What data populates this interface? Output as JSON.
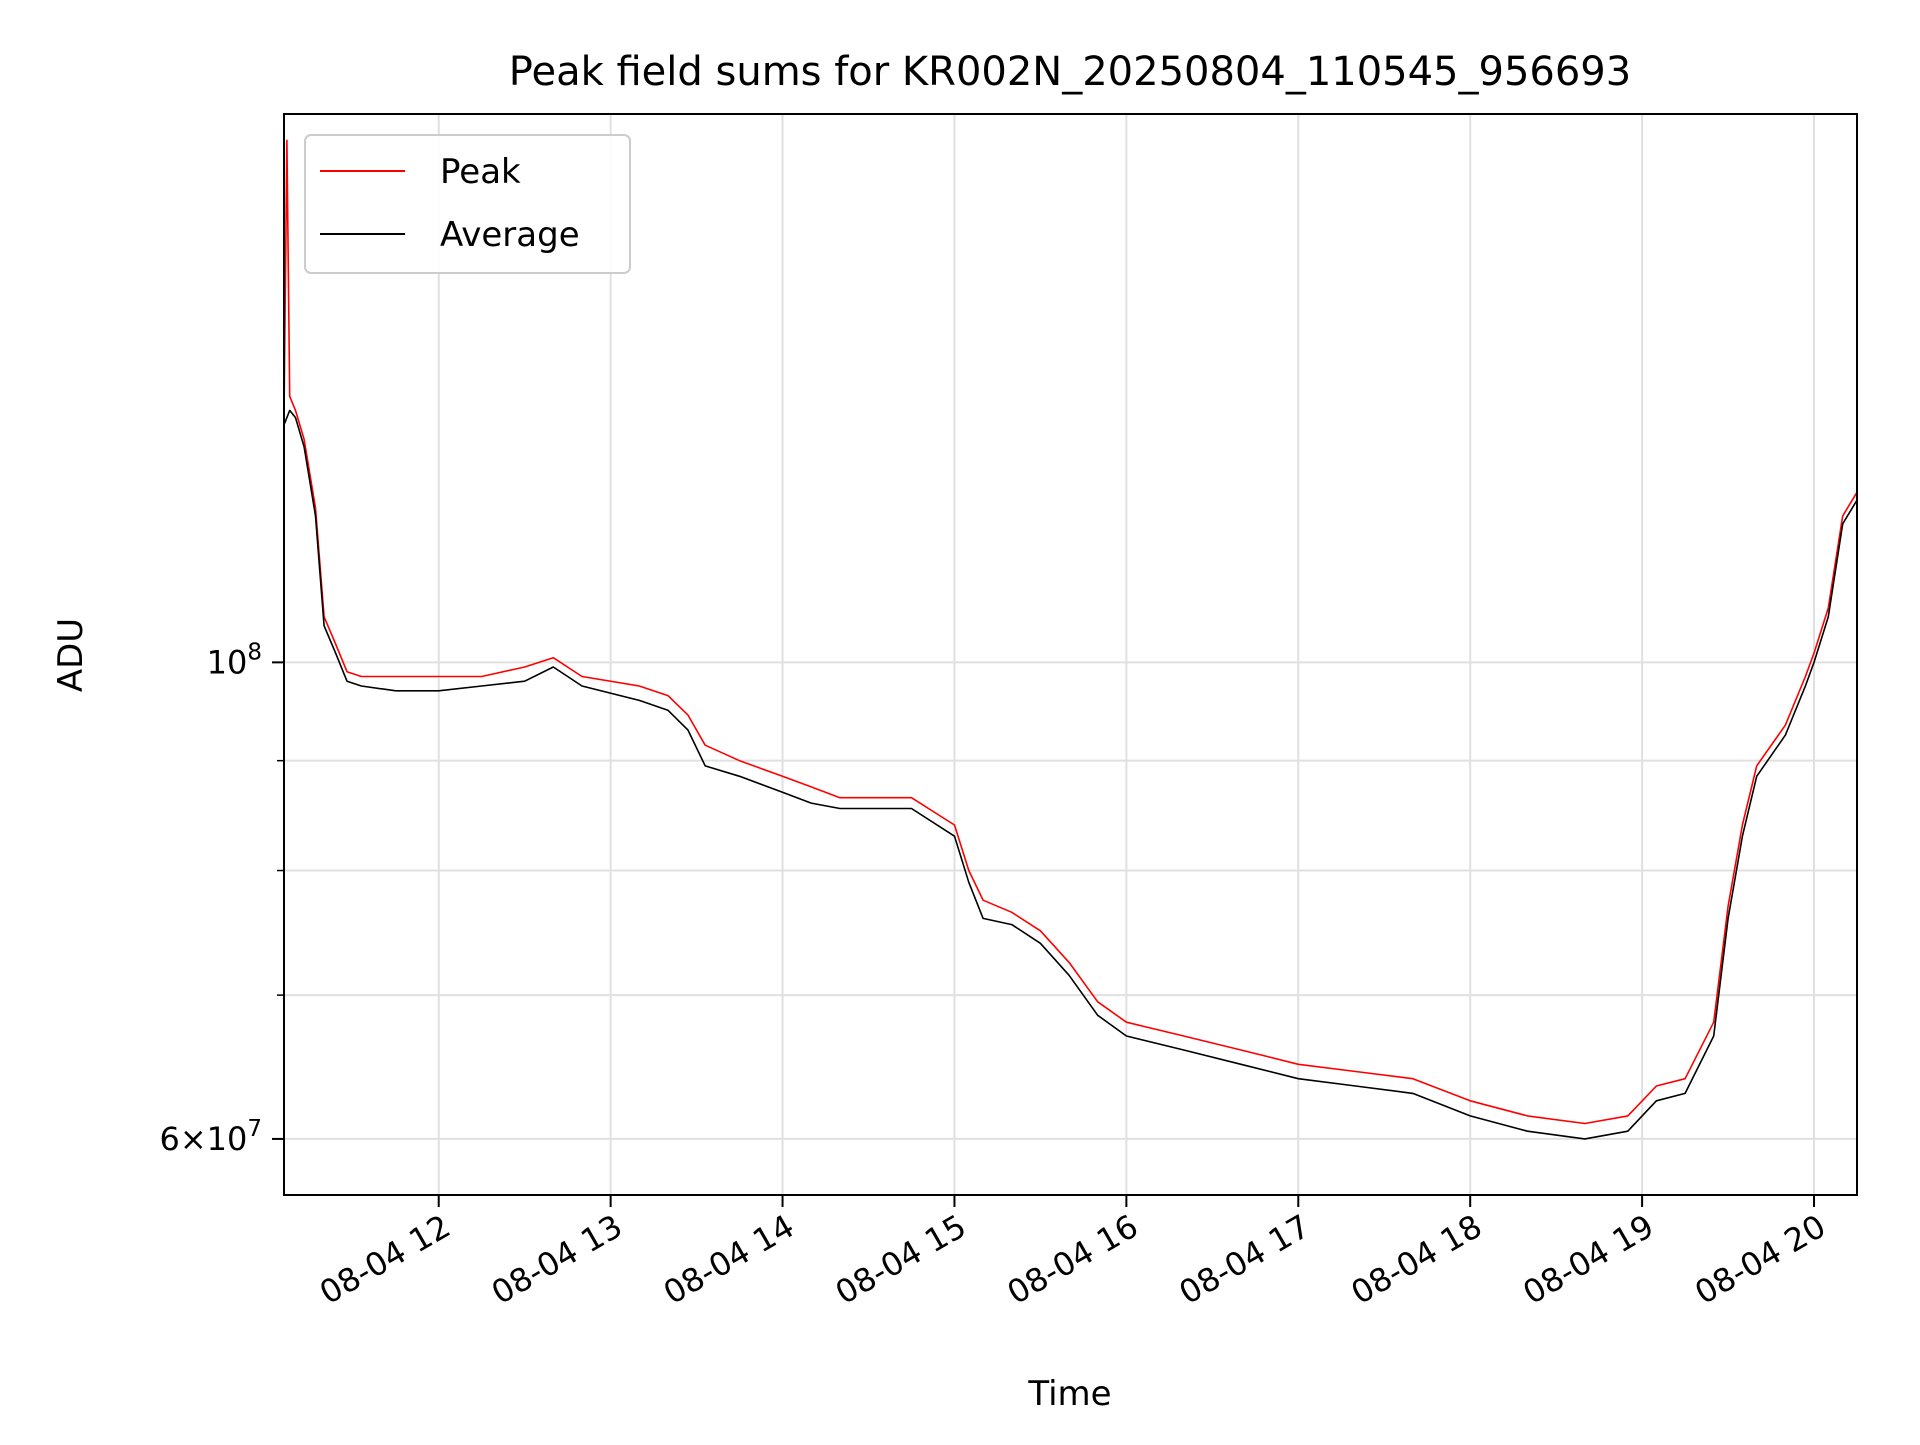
{
  "chart_data": {
    "type": "line",
    "title": "Peak field sums for KR002N_20250804_110545_956693",
    "xlabel": "Time",
    "ylabel": "ADU",
    "y_scale": "log",
    "grid": true,
    "legend_position": "top-left",
    "x_range": [
      "2025-08-04 11:06",
      "2025-08-04 20:15"
    ],
    "ylim": [
      56500000,
      180000000
    ],
    "x_ticks": [
      {
        "time": "2025-08-04 12:00",
        "label": "08-04 12"
      },
      {
        "time": "2025-08-04 13:00",
        "label": "08-04 13"
      },
      {
        "time": "2025-08-04 14:00",
        "label": "08-04 14"
      },
      {
        "time": "2025-08-04 15:00",
        "label": "08-04 15"
      },
      {
        "time": "2025-08-04 16:00",
        "label": "08-04 16"
      },
      {
        "time": "2025-08-04 17:00",
        "label": "08-04 17"
      },
      {
        "time": "2025-08-04 18:00",
        "label": "08-04 18"
      },
      {
        "time": "2025-08-04 19:00",
        "label": "08-04 19"
      },
      {
        "time": "2025-08-04 20:00",
        "label": "08-04 20"
      }
    ],
    "y_major_ticks": [
      {
        "value": 60000000,
        "mantissa": "6",
        "base": "10",
        "exp": "7"
      },
      {
        "value": 100000000,
        "mantissa": "",
        "base": "10",
        "exp": "8"
      }
    ],
    "y_minor_gridlines": [
      70000000,
      80000000,
      90000000
    ],
    "series": [
      {
        "name": "Peak",
        "color": "#ff0000",
        "points": [
          [
            "2025-08-04 11:06",
            130000000
          ],
          [
            "2025-08-04 11:07",
            175000000
          ],
          [
            "2025-08-04 11:08",
            133000000
          ],
          [
            "2025-08-04 11:10",
            131000000
          ],
          [
            "2025-08-04 11:13",
            127000000
          ],
          [
            "2025-08-04 11:17",
            118000000
          ],
          [
            "2025-08-04 11:20",
            105000000
          ],
          [
            "2025-08-04 11:24",
            102000000
          ],
          [
            "2025-08-04 11:28",
            99000000
          ],
          [
            "2025-08-04 11:33",
            98500000
          ],
          [
            "2025-08-04 11:45",
            98500000
          ],
          [
            "2025-08-04 12:00",
            98500000
          ],
          [
            "2025-08-04 12:15",
            98500000
          ],
          [
            "2025-08-04 12:30",
            99500000
          ],
          [
            "2025-08-04 12:40",
            100500000
          ],
          [
            "2025-08-04 12:50",
            98500000
          ],
          [
            "2025-08-04 13:10",
            97500000
          ],
          [
            "2025-08-04 13:20",
            96500000
          ],
          [
            "2025-08-04 13:27",
            94500000
          ],
          [
            "2025-08-04 13:33",
            91500000
          ],
          [
            "2025-08-04 13:45",
            90000000
          ],
          [
            "2025-08-04 14:00",
            88500000
          ],
          [
            "2025-08-04 14:10",
            87500000
          ],
          [
            "2025-08-04 14:20",
            86500000
          ],
          [
            "2025-08-04 14:30",
            86500000
          ],
          [
            "2025-08-04 14:45",
            86500000
          ],
          [
            "2025-08-04 15:00",
            84000000
          ],
          [
            "2025-08-04 15:05",
            80000000
          ],
          [
            "2025-08-04 15:10",
            77500000
          ],
          [
            "2025-08-04 15:20",
            76500000
          ],
          [
            "2025-08-04 15:30",
            75000000
          ],
          [
            "2025-08-04 15:40",
            72500000
          ],
          [
            "2025-08-04 15:50",
            69500000
          ],
          [
            "2025-08-04 16:00",
            68000000
          ],
          [
            "2025-08-04 16:20",
            67000000
          ],
          [
            "2025-08-04 16:40",
            66000000
          ],
          [
            "2025-08-04 17:00",
            65000000
          ],
          [
            "2025-08-04 17:20",
            64500000
          ],
          [
            "2025-08-04 17:40",
            64000000
          ],
          [
            "2025-08-04 18:00",
            62500000
          ],
          [
            "2025-08-04 18:20",
            61500000
          ],
          [
            "2025-08-04 18:40",
            61000000
          ],
          [
            "2025-08-04 18:55",
            61500000
          ],
          [
            "2025-08-04 19:05",
            63500000
          ],
          [
            "2025-08-04 19:15",
            64000000
          ],
          [
            "2025-08-04 19:25",
            68000000
          ],
          [
            "2025-08-04 19:30",
            77000000
          ],
          [
            "2025-08-04 19:35",
            84000000
          ],
          [
            "2025-08-04 19:40",
            89500000
          ],
          [
            "2025-08-04 19:50",
            93500000
          ],
          [
            "2025-08-04 19:57",
            98500000
          ],
          [
            "2025-08-04 20:00",
            101000000
          ],
          [
            "2025-08-04 20:05",
            106000000
          ],
          [
            "2025-08-04 20:10",
            117000000
          ],
          [
            "2025-08-04 20:15",
            120000000
          ]
        ]
      },
      {
        "name": "Average",
        "color": "#000000",
        "points": [
          [
            "2025-08-04 11:06",
            129000000
          ],
          [
            "2025-08-04 11:08",
            131000000
          ],
          [
            "2025-08-04 11:10",
            130000000
          ],
          [
            "2025-08-04 11:13",
            126000000
          ],
          [
            "2025-08-04 11:17",
            117000000
          ],
          [
            "2025-08-04 11:20",
            104000000
          ],
          [
            "2025-08-04 11:24",
            101000000
          ],
          [
            "2025-08-04 11:28",
            98000000
          ],
          [
            "2025-08-04 11:33",
            97500000
          ],
          [
            "2025-08-04 11:45",
            97000000
          ],
          [
            "2025-08-04 12:00",
            97000000
          ],
          [
            "2025-08-04 12:15",
            97500000
          ],
          [
            "2025-08-04 12:30",
            98000000
          ],
          [
            "2025-08-04 12:40",
            99500000
          ],
          [
            "2025-08-04 12:50",
            97500000
          ],
          [
            "2025-08-04 13:10",
            96000000
          ],
          [
            "2025-08-04 13:20",
            95000000
          ],
          [
            "2025-08-04 13:27",
            93000000
          ],
          [
            "2025-08-04 13:33",
            89500000
          ],
          [
            "2025-08-04 13:45",
            88500000
          ],
          [
            "2025-08-04 14:00",
            87000000
          ],
          [
            "2025-08-04 14:10",
            86000000
          ],
          [
            "2025-08-04 14:20",
            85500000
          ],
          [
            "2025-08-04 14:30",
            85500000
          ],
          [
            "2025-08-04 14:45",
            85500000
          ],
          [
            "2025-08-04 15:00",
            83000000
          ],
          [
            "2025-08-04 15:05",
            79000000
          ],
          [
            "2025-08-04 15:10",
            76000000
          ],
          [
            "2025-08-04 15:20",
            75500000
          ],
          [
            "2025-08-04 15:30",
            74000000
          ],
          [
            "2025-08-04 15:40",
            71500000
          ],
          [
            "2025-08-04 15:50",
            68500000
          ],
          [
            "2025-08-04 16:00",
            67000000
          ],
          [
            "2025-08-04 16:20",
            66000000
          ],
          [
            "2025-08-04 16:40",
            65000000
          ],
          [
            "2025-08-04 17:00",
            64000000
          ],
          [
            "2025-08-04 17:20",
            63500000
          ],
          [
            "2025-08-04 17:40",
            63000000
          ],
          [
            "2025-08-04 18:00",
            61500000
          ],
          [
            "2025-08-04 18:20",
            60500000
          ],
          [
            "2025-08-04 18:40",
            60000000
          ],
          [
            "2025-08-04 18:55",
            60500000
          ],
          [
            "2025-08-04 19:05",
            62500000
          ],
          [
            "2025-08-04 19:15",
            63000000
          ],
          [
            "2025-08-04 19:25",
            67000000
          ],
          [
            "2025-08-04 19:30",
            76000000
          ],
          [
            "2025-08-04 19:35",
            83000000
          ],
          [
            "2025-08-04 19:40",
            88500000
          ],
          [
            "2025-08-04 19:50",
            92500000
          ],
          [
            "2025-08-04 19:57",
            97500000
          ],
          [
            "2025-08-04 20:00",
            100000000
          ],
          [
            "2025-08-04 20:05",
            105000000
          ],
          [
            "2025-08-04 20:10",
            116000000
          ],
          [
            "2025-08-04 20:15",
            119000000
          ]
        ]
      }
    ]
  }
}
